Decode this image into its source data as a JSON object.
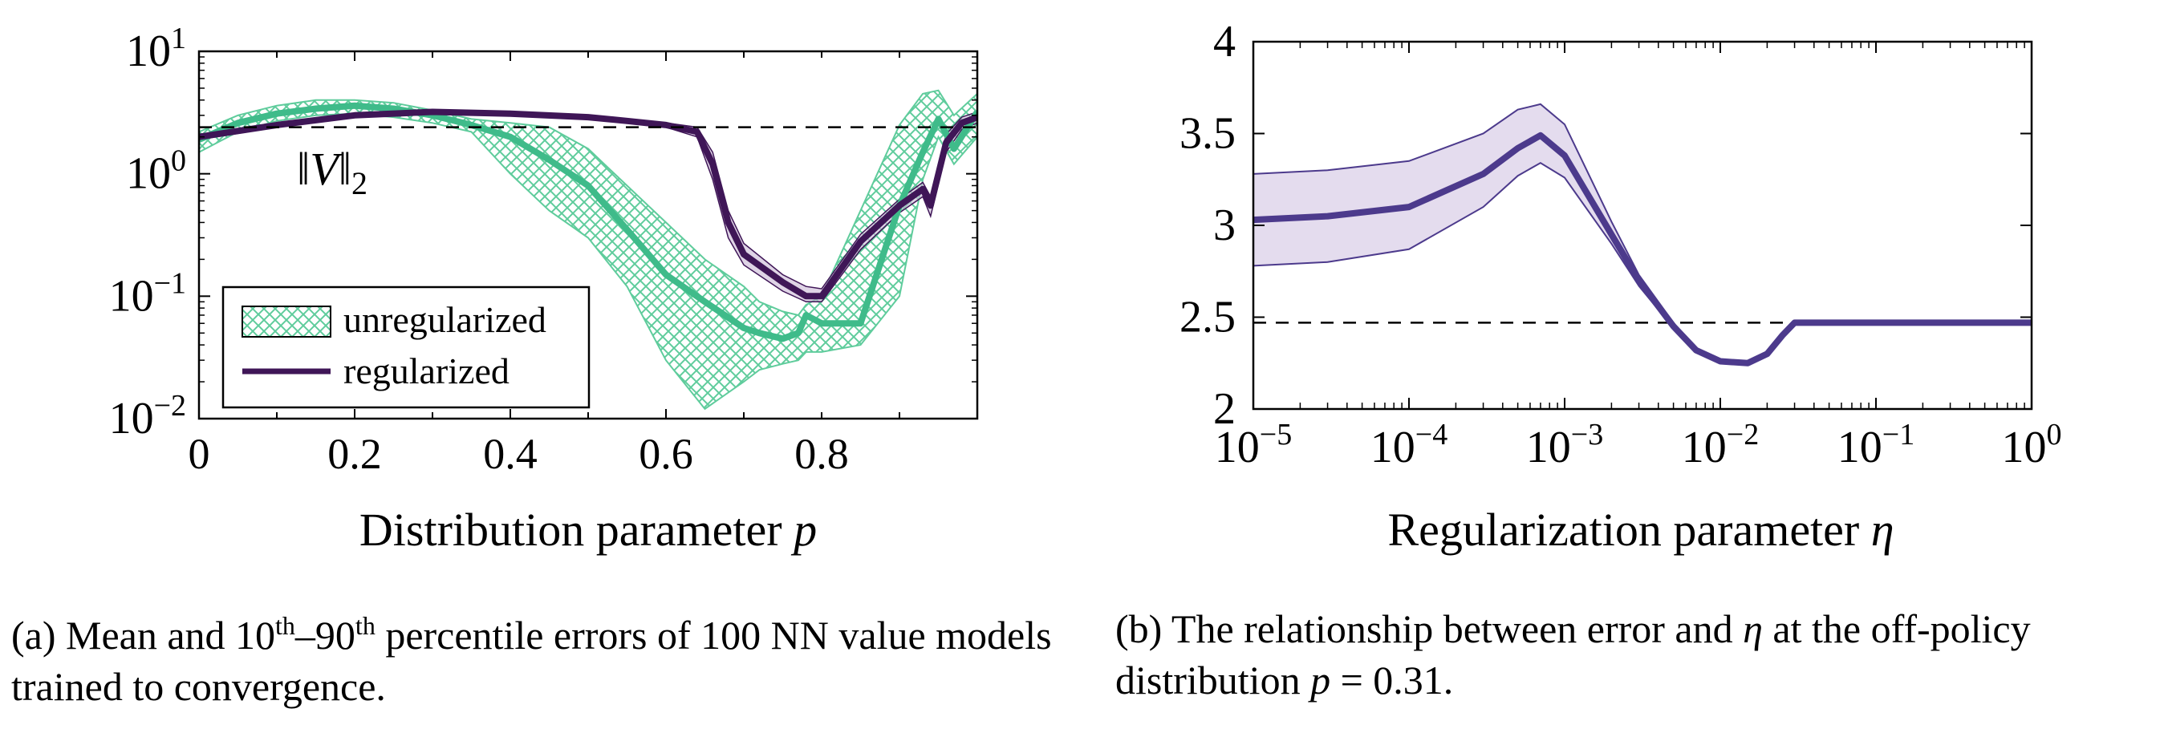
{
  "charts": [
    {
      "id": "a",
      "type": "line",
      "xlabel_text": "Distribution parameter",
      "xlabel_var": "p",
      "xlim": [
        0,
        1
      ],
      "ylim": [
        0.01,
        10
      ],
      "yscale": "log",
      "x_ticks": [
        {
          "value": 0,
          "label": "0"
        },
        {
          "value": 0.2,
          "label": "0.2"
        },
        {
          "value": 0.4,
          "label": "0.4"
        },
        {
          "value": 0.6,
          "label": "0.6"
        },
        {
          "value": 0.8,
          "label": "0.8"
        }
      ],
      "y_ticks": [
        {
          "value": 10,
          "base": "10",
          "exp": "1"
        },
        {
          "value": 1,
          "base": "10",
          "exp": "0"
        },
        {
          "value": 0.1,
          "base": "10",
          "exp": "−1"
        },
        {
          "value": 0.01,
          "base": "10",
          "exp": "−2"
        }
      ],
      "reference_line": {
        "value": 2.4,
        "label": "‖V‖₂"
      },
      "legend": [
        {
          "label": "unregularized",
          "kind": "band-hatch"
        },
        {
          "label": "regularized",
          "kind": "line"
        }
      ]
    },
    {
      "id": "b",
      "type": "line",
      "xlabel_text": "Regularization parameter",
      "xlabel_var": "η",
      "xlim": [
        1e-05,
        1
      ],
      "xscale": "log",
      "ylim": [
        2,
        4
      ],
      "x_ticks": [
        {
          "value": 1e-05,
          "base": "10",
          "exp": "−5"
        },
        {
          "value": 0.0001,
          "base": "10",
          "exp": "−4"
        },
        {
          "value": 0.001,
          "base": "10",
          "exp": "−3"
        },
        {
          "value": 0.01,
          "base": "10",
          "exp": "−2"
        },
        {
          "value": 0.1,
          "base": "10",
          "exp": "−1"
        },
        {
          "value": 1,
          "base": "10",
          "exp": "0"
        }
      ],
      "y_ticks": [
        {
          "value": 2,
          "label": "2"
        },
        {
          "value": 2.5,
          "label": "2.5"
        },
        {
          "value": 3,
          "label": "3"
        },
        {
          "value": 3.5,
          "label": "3.5"
        },
        {
          "value": 4,
          "label": "4"
        }
      ],
      "reference_line": {
        "value": 2.47
      }
    }
  ],
  "chart_data": [
    {
      "type": "line",
      "xlabel": "Distribution parameter p",
      "ylabel": "",
      "xlim": [
        0,
        1
      ],
      "ylim": [
        0.01,
        10
      ],
      "yscale": "log",
      "reference_line": 2.4,
      "series": [
        {
          "name": "unregularized",
          "x": [
            0,
            0.05,
            0.1,
            0.15,
            0.2,
            0.25,
            0.3,
            0.35,
            0.4,
            0.45,
            0.5,
            0.55,
            0.6,
            0.65,
            0.7,
            0.72,
            0.75,
            0.77,
            0.78,
            0.8,
            0.85,
            0.9,
            0.93,
            0.95,
            0.97,
            1.0
          ],
          "mean": [
            1.9,
            2.6,
            3.1,
            3.4,
            3.6,
            3.4,
            3.0,
            2.5,
            2.0,
            1.3,
            0.8,
            0.35,
            0.15,
            0.09,
            0.055,
            0.05,
            0.045,
            0.05,
            0.07,
            0.06,
            0.06,
            0.55,
            1.5,
            2.8,
            1.6,
            3.2
          ],
          "p10": [
            1.5,
            2.2,
            2.7,
            3.0,
            3.1,
            2.9,
            2.6,
            2.2,
            1.0,
            0.5,
            0.3,
            0.12,
            0.03,
            0.012,
            0.02,
            0.025,
            0.028,
            0.03,
            0.035,
            0.035,
            0.04,
            0.1,
            0.9,
            2.0,
            1.2,
            2.0
          ],
          "p90": [
            2.2,
            3.0,
            3.6,
            4.0,
            4.0,
            3.8,
            3.3,
            2.8,
            2.6,
            2.4,
            1.6,
            0.8,
            0.4,
            0.2,
            0.12,
            0.09,
            0.075,
            0.07,
            0.085,
            0.1,
            0.5,
            2.5,
            4.5,
            4.8,
            3.0,
            4.5
          ]
        },
        {
          "name": "regularized",
          "x": [
            0,
            0.1,
            0.2,
            0.3,
            0.4,
            0.5,
            0.55,
            0.6,
            0.64,
            0.66,
            0.68,
            0.7,
            0.75,
            0.78,
            0.8,
            0.85,
            0.9,
            0.93,
            0.94,
            0.96,
            0.98,
            1.0
          ],
          "mean": [
            2.0,
            2.5,
            3.0,
            3.2,
            3.1,
            2.9,
            2.7,
            2.5,
            2.2,
            1.2,
            0.4,
            0.22,
            0.13,
            0.1,
            0.1,
            0.28,
            0.55,
            0.75,
            0.55,
            1.8,
            2.6,
            2.9
          ],
          "p10": [
            1.9,
            2.4,
            2.9,
            3.1,
            3.0,
            2.8,
            2.6,
            2.4,
            2.0,
            0.9,
            0.3,
            0.18,
            0.11,
            0.09,
            0.09,
            0.24,
            0.48,
            0.65,
            0.45,
            1.5,
            2.3,
            2.6
          ],
          "p90": [
            2.1,
            2.6,
            3.1,
            3.3,
            3.2,
            3.0,
            2.8,
            2.6,
            2.4,
            1.5,
            0.5,
            0.27,
            0.15,
            0.12,
            0.115,
            0.32,
            0.62,
            0.85,
            0.65,
            2.1,
            2.9,
            3.2
          ]
        }
      ]
    },
    {
      "type": "line",
      "xlabel": "Regularization parameter η",
      "ylabel": "",
      "xlim": [
        1e-05,
        1
      ],
      "ylim": [
        2,
        4
      ],
      "xscale": "log",
      "reference_line": 2.47,
      "series": [
        {
          "x": [
            1e-05,
            3e-05,
            0.0001,
            0.0003,
            0.0005,
            0.0007,
            0.001,
            0.002,
            0.003,
            0.005,
            0.007,
            0.01,
            0.015,
            0.02,
            0.025,
            0.03,
            0.1,
            1
          ],
          "mean": [
            3.03,
            3.05,
            3.1,
            3.28,
            3.42,
            3.49,
            3.38,
            2.95,
            2.7,
            2.45,
            2.32,
            2.26,
            2.25,
            2.3,
            2.4,
            2.47,
            2.47,
            2.47
          ],
          "low": [
            2.78,
            2.8,
            2.87,
            3.1,
            3.27,
            3.34,
            3.26,
            2.9,
            2.67,
            2.44,
            2.31,
            2.25,
            2.24,
            2.29,
            2.39,
            2.46,
            2.46,
            2.46
          ],
          "high": [
            3.28,
            3.3,
            3.35,
            3.5,
            3.63,
            3.66,
            3.55,
            3.02,
            2.73,
            2.47,
            2.33,
            2.27,
            2.26,
            2.31,
            2.41,
            2.48,
            2.48,
            2.48
          ]
        }
      ]
    }
  ],
  "captions": {
    "a": {
      "prefix": "(a) Mean and 10",
      "sup1": "th",
      "dash": "–90",
      "sup2": "th",
      "suffix": " percentile errors of 100 NN value models trained to convergence."
    },
    "b": {
      "prefix": "(b) The relationship between error and ",
      "var": "η",
      "mid": " at the off-policy distribution ",
      "var2": "p",
      "eq": " = 0.31."
    }
  },
  "colors": {
    "green": "#3fbb8a",
    "green_hatch": "#5fcc9c",
    "purple": "#3f1657",
    "purple_b": "#4c3a8c",
    "purple_fill": "#e4dcee"
  }
}
